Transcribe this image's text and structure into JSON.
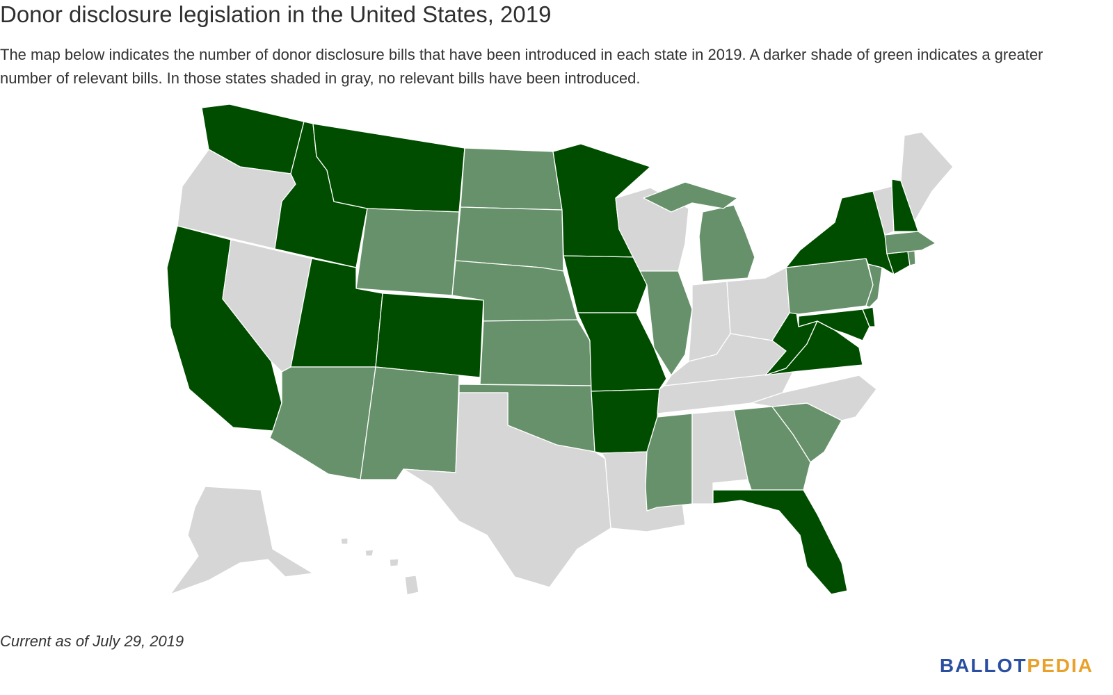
{
  "title": "Donor disclosure legislation in the United States, 2019",
  "description": "The map below indicates the number of donor disclosure bills that have been introduced in each state in 2019. A darker shade of green indicates a greater number of relevant bills. In those states shaded in gray, no relevant bills have been introduced.",
  "footnote": "Current as of July 29, 2019",
  "logo": {
    "part1": "BALLOT",
    "part2": "PEDIA"
  },
  "colors": {
    "dark": "#004d00",
    "medium": "#66916a",
    "none": "#d6d6d6",
    "logo_blue": "#2a4fa0",
    "logo_gold": "#e8a12a"
  },
  "map": {
    "shading": {
      "dark": [
        "Washington",
        "Idaho",
        "Montana",
        "Minnesota",
        "California",
        "Utah",
        "Colorado",
        "Iowa",
        "Missouri",
        "Arkansas",
        "Florida",
        "New York",
        "New Hampshire",
        "Connecticut",
        "West Virginia",
        "Virginia",
        "Maryland",
        "Delaware"
      ],
      "medium": [
        "North Dakota",
        "South Dakota",
        "Wyoming",
        "Nebraska",
        "Kansas",
        "Oklahoma",
        "Arizona",
        "New Mexico",
        "Michigan",
        "Illinois",
        "Mississippi",
        "Georgia",
        "South Carolina",
        "Pennsylvania",
        "New Jersey",
        "Massachusetts",
        "Rhode Island"
      ],
      "none": [
        "Oregon",
        "Nevada",
        "Texas",
        "Louisiana",
        "Alabama",
        "Tennessee",
        "Kentucky",
        "Indiana",
        "Ohio",
        "Wisconsin",
        "North Carolina",
        "Maine",
        "Vermont",
        "Alaska",
        "Hawaii"
      ]
    }
  }
}
